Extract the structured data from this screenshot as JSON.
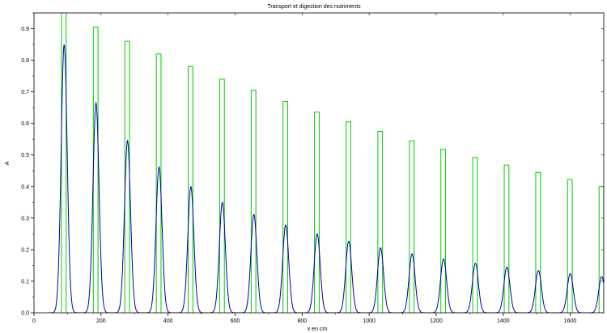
{
  "chart_data": {
    "type": "line",
    "title": "Transport et digestion des nutriments",
    "xlabel": "x en cm",
    "ylabel": "A",
    "xlim": [
      0,
      1700
    ],
    "ylim": [
      0,
      0.95
    ],
    "grid": false,
    "x_ticks": [
      0,
      200,
      400,
      600,
      800,
      1000,
      1200,
      1400,
      1600
    ],
    "x_tick_labels": [
      "0",
      "200",
      "400",
      "600",
      "800",
      "1000",
      "1200",
      "1400",
      "1600"
    ],
    "y_ticks": [
      0.0,
      0.1,
      0.2,
      0.3,
      0.4,
      0.5,
      0.6,
      0.7,
      0.8,
      0.9
    ],
    "y_tick_labels": [
      "0.0",
      "0.1",
      "0.2",
      "0.3",
      "0.4",
      "0.5",
      "0.6",
      "0.7",
      "0.8",
      "0.9"
    ],
    "series": [
      {
        "color": "#00cc00",
        "style": "rectangular pulses",
        "pulse_width": 14,
        "pulses": [
          {
            "start": 82,
            "amplitude": 0.95
          },
          {
            "start": 177,
            "amplitude": 0.905
          },
          {
            "start": 271,
            "amplitude": 0.86
          },
          {
            "start": 365,
            "amplitude": 0.82
          },
          {
            "start": 460,
            "amplitude": 0.78
          },
          {
            "start": 554,
            "amplitude": 0.74
          },
          {
            "start": 648,
            "amplitude": 0.705
          },
          {
            "start": 743,
            "amplitude": 0.67
          },
          {
            "start": 837,
            "amplitude": 0.636
          },
          {
            "start": 931,
            "amplitude": 0.605
          },
          {
            "start": 1026,
            "amplitude": 0.575
          },
          {
            "start": 1120,
            "amplitude": 0.545
          },
          {
            "start": 1214,
            "amplitude": 0.518
          },
          {
            "start": 1309,
            "amplitude": 0.492
          },
          {
            "start": 1403,
            "amplitude": 0.468
          },
          {
            "start": 1497,
            "amplitude": 0.445
          },
          {
            "start": 1592,
            "amplitude": 0.422
          },
          {
            "start": 1686,
            "amplitude": 0.4
          }
        ]
      },
      {
        "color": "#0000aa",
        "style": "gaussian peaks",
        "peaks": [
          {
            "center": 90,
            "height": 0.85
          },
          {
            "center": 185,
            "height": 0.665
          },
          {
            "center": 279,
            "height": 0.545
          },
          {
            "center": 373,
            "height": 0.462
          },
          {
            "center": 468,
            "height": 0.4
          },
          {
            "center": 562,
            "height": 0.35
          },
          {
            "center": 656,
            "height": 0.312
          },
          {
            "center": 751,
            "height": 0.278
          },
          {
            "center": 845,
            "height": 0.25
          },
          {
            "center": 939,
            "height": 0.227
          },
          {
            "center": 1034,
            "height": 0.206
          },
          {
            "center": 1128,
            "height": 0.187
          },
          {
            "center": 1222,
            "height": 0.171
          },
          {
            "center": 1317,
            "height": 0.157
          },
          {
            "center": 1411,
            "height": 0.145
          },
          {
            "center": 1505,
            "height": 0.134
          },
          {
            "center": 1600,
            "height": 0.124
          },
          {
            "center": 1694,
            "height": 0.115
          }
        ]
      }
    ]
  }
}
